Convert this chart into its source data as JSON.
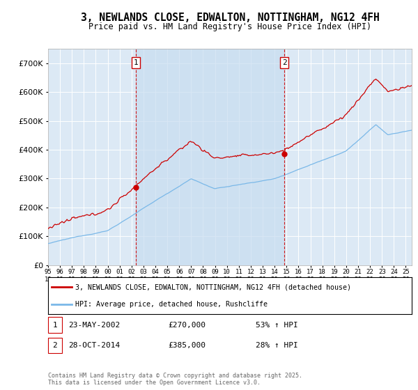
{
  "title": "3, NEWLANDS CLOSE, EDWALTON, NOTTINGHAM, NG12 4FH",
  "subtitle": "Price paid vs. HM Land Registry's House Price Index (HPI)",
  "background_color": "#ffffff",
  "plot_bg_color": "#dce9f5",
  "hpi_color": "#7ab8e8",
  "price_color": "#cc0000",
  "purchase_zone_color": "#cddff0",
  "ylim": [
    0,
    750000
  ],
  "yticks": [
    0,
    100000,
    200000,
    300000,
    400000,
    500000,
    600000,
    700000
  ],
  "legend_label_price": "3, NEWLANDS CLOSE, EDWALTON, NOTTINGHAM, NG12 4FH (detached house)",
  "legend_label_hpi": "HPI: Average price, detached house, Rushcliffe",
  "purchase1_date": 2002.38,
  "purchase1_price": 270000,
  "purchase1_label": "1",
  "purchase2_date": 2014.82,
  "purchase2_price": 385000,
  "purchase2_label": "2",
  "footer": "Contains HM Land Registry data © Crown copyright and database right 2025.\nThis data is licensed under the Open Government Licence v3.0.",
  "xstart": 1995,
  "xend": 2025.5
}
